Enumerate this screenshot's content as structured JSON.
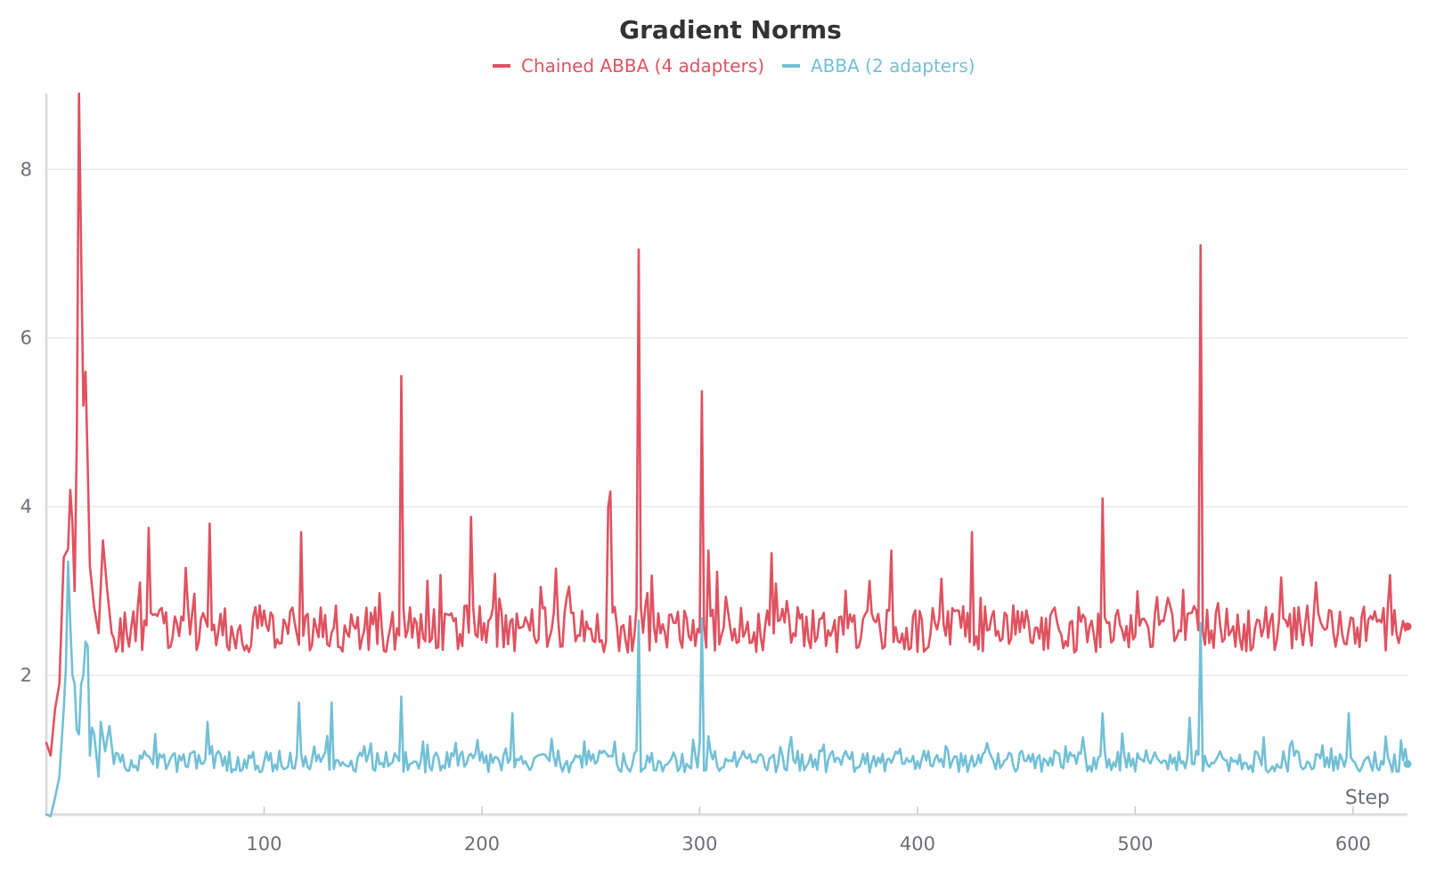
{
  "chart_data": {
    "type": "line",
    "title": "Gradient Norms",
    "xlabel": "Step",
    "ylabel": "",
    "xlim": [
      0,
      625
    ],
    "ylim": [
      0.35,
      8.9
    ],
    "x_ticks": [
      100,
      200,
      300,
      400,
      500,
      600
    ],
    "y_ticks": [
      2,
      4,
      6,
      8
    ],
    "grid": true,
    "legend_position": "top-center",
    "series": [
      {
        "name": "Chained ABBA (4 adapters)",
        "color": "#e05260",
        "base": 2.55,
        "base_noise": 0.28,
        "keypoints": [
          [
            0,
            1.2
          ],
          [
            2,
            1.05
          ],
          [
            4,
            1.6
          ],
          [
            6,
            1.9
          ],
          [
            8,
            3.4
          ],
          [
            10,
            3.5
          ],
          [
            11,
            4.2
          ],
          [
            12,
            3.8
          ],
          [
            13,
            3.0
          ],
          [
            14,
            4.8
          ],
          [
            15,
            8.9
          ],
          [
            16,
            7.0
          ],
          [
            17,
            5.2
          ],
          [
            18,
            5.6
          ],
          [
            19,
            4.5
          ],
          [
            20,
            3.3
          ],
          [
            22,
            2.8
          ],
          [
            24,
            2.5
          ],
          [
            26,
            3.6
          ],
          [
            28,
            3.0
          ],
          [
            30,
            2.5
          ]
        ],
        "spikes": [
          [
            47,
            3.75
          ],
          [
            75,
            3.8
          ],
          [
            117,
            3.7
          ],
          [
            163,
            5.55
          ],
          [
            195,
            3.88
          ],
          [
            258,
            4.0
          ],
          [
            259,
            4.18
          ],
          [
            272,
            7.05
          ],
          [
            301,
            5.37
          ],
          [
            304,
            3.48
          ],
          [
            333,
            3.45
          ],
          [
            388,
            3.48
          ],
          [
            425,
            3.7
          ],
          [
            485,
            4.1
          ],
          [
            530,
            7.1
          ]
        ],
        "end_value": 2.58
      },
      {
        "name": "ABBA (2 adapters)",
        "color": "#72c0d6",
        "base": 0.98,
        "base_noise": 0.13,
        "keypoints": [
          [
            0,
            0.35
          ],
          [
            2,
            0.33
          ],
          [
            4,
            0.55
          ],
          [
            6,
            0.8
          ],
          [
            8,
            1.6
          ],
          [
            9,
            2.1
          ],
          [
            10,
            3.35
          ],
          [
            11,
            2.6
          ],
          [
            12,
            2.0
          ],
          [
            13,
            1.9
          ],
          [
            14,
            1.35
          ],
          [
            15,
            1.3
          ],
          [
            16,
            1.9
          ],
          [
            17,
            2.0
          ],
          [
            18,
            2.4
          ],
          [
            19,
            2.35
          ],
          [
            20,
            1.05
          ],
          [
            21,
            1.38
          ],
          [
            22,
            1.3
          ],
          [
            24,
            0.8
          ],
          [
            25,
            1.45
          ],
          [
            27,
            1.1
          ],
          [
            29,
            1.4
          ],
          [
            31,
            0.95
          ]
        ],
        "spikes": [
          [
            74,
            1.45
          ],
          [
            116,
            1.68
          ],
          [
            131,
            1.68
          ],
          [
            163,
            1.75
          ],
          [
            214,
            1.55
          ],
          [
            272,
            2.65
          ],
          [
            301,
            2.68
          ],
          [
            485,
            1.55
          ],
          [
            525,
            1.5
          ],
          [
            530,
            2.62
          ],
          [
            598,
            1.55
          ]
        ],
        "end_value": 0.95
      }
    ]
  }
}
